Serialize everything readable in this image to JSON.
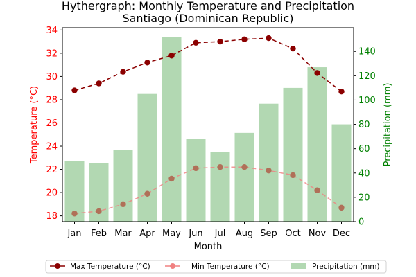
{
  "chart_data": {
    "type": "bar+line",
    "title_line1": "Hythergraph: Monthly Temperature and Precipitation",
    "title_line2": "Santiago (Dominican Republic)",
    "xlabel": "Month",
    "ylabel_left": "Temperature (°C)",
    "ylabel_right": "Precipitation (mm)",
    "categories": [
      "Jan",
      "Feb",
      "Mar",
      "Apr",
      "May",
      "Jun",
      "Jul",
      "Aug",
      "Sep",
      "Oct",
      "Nov",
      "Dec"
    ],
    "y_left": {
      "lim": [
        17.5,
        34.2
      ],
      "ticks": [
        18,
        20,
        22,
        24,
        26,
        28,
        30,
        32,
        34
      ]
    },
    "y_right": {
      "lim": [
        0,
        159.5
      ],
      "ticks": [
        0,
        20,
        40,
        60,
        80,
        100,
        120,
        140
      ]
    },
    "series": [
      {
        "name": "Max Temperature (°C)",
        "axis": "left",
        "kind": "line",
        "color": "#8b0000",
        "values": [
          28.8,
          29.4,
          30.4,
          31.2,
          31.8,
          32.9,
          33.0,
          33.2,
          33.3,
          32.4,
          30.3,
          28.7
        ]
      },
      {
        "name": "Min Temperature (°C)",
        "axis": "left",
        "kind": "line",
        "color": "#f08080",
        "values": [
          18.2,
          18.4,
          19.0,
          19.9,
          21.2,
          22.1,
          22.2,
          22.2,
          21.9,
          21.5,
          20.2,
          18.7
        ]
      },
      {
        "name": "Precipitation (mm)",
        "axis": "right",
        "kind": "bar",
        "color": "#b2d8b2",
        "values": [
          50,
          48,
          59,
          105,
          152,
          68,
          57,
          73,
          97,
          110,
          127,
          80
        ]
      }
    ],
    "left_axis_color": "#ff0000",
    "right_axis_color": "#008000",
    "legend_position": "bottom-center",
    "grid": false
  }
}
